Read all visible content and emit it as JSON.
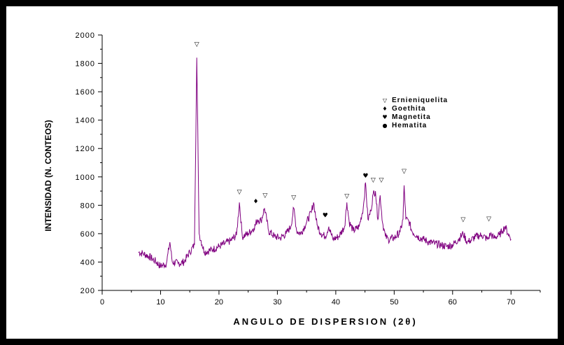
{
  "chart_data": {
    "type": "line",
    "title": "",
    "xlabel": "ANGULO DE DISPERSION (2θ)",
    "ylabel": "INTENSIDAD (N. CONTEOS)",
    "xlim": [
      0,
      75
    ],
    "ylim": [
      200,
      2000
    ],
    "x_ticks": [
      0,
      10,
      20,
      30,
      40,
      50,
      60,
      70
    ],
    "y_ticks": [
      200,
      400,
      600,
      800,
      1000,
      1200,
      1400,
      1600,
      1800,
      2000
    ],
    "grid": false,
    "line_color": "#800080",
    "series": [
      {
        "x": [
          6.2,
          7,
          8,
          9,
          10,
          11,
          11.6,
          12,
          13,
          14,
          15,
          15.8,
          16.2,
          16.6,
          17.5,
          19,
          20,
          21,
          22,
          23,
          23.5,
          24,
          25,
          26,
          26.6,
          27.2,
          27.8,
          28.5,
          29.5,
          30.5,
          31.5,
          32.3,
          32.8,
          33.3,
          34,
          35,
          35.8,
          36.2,
          36.8,
          37.5,
          38.2,
          38.8,
          39.5,
          40.5,
          41.5,
          41.9,
          42.3,
          43,
          44,
          44.7,
          45.1,
          45.5,
          46,
          46.4,
          46.8,
          47.2,
          47.6,
          48,
          48.5,
          49,
          50,
          51,
          51.5,
          51.7,
          52,
          52.5,
          53,
          54,
          55,
          56,
          57,
          58,
          59,
          60,
          61,
          61.8,
          62.5,
          63,
          64,
          65,
          66,
          66.5,
          67,
          68,
          68.5,
          69,
          69.5,
          70
        ],
        "y": [
          470,
          460,
          440,
          410,
          370,
          390,
          540,
          400,
          390,
          400,
          470,
          520,
          1840,
          600,
          470,
          490,
          510,
          530,
          550,
          590,
          820,
          580,
          600,
          640,
          700,
          690,
          780,
          620,
          580,
          570,
          600,
          650,
          780,
          620,
          600,
          680,
          750,
          820,
          660,
          600,
          580,
          650,
          560,
          580,
          650,
          820,
          680,
          620,
          650,
          780,
          960,
          700,
          760,
          880,
          900,
          700,
          870,
          680,
          580,
          560,
          570,
          610,
          700,
          940,
          700,
          690,
          620,
          580,
          560,
          540,
          530,
          520,
          510,
          520,
          560,
          600,
          540,
          550,
          580,
          590,
          560,
          600,
          570,
          590,
          620,
          650,
          600,
          560
        ]
      }
    ],
    "markers": [
      {
        "x": 16.2,
        "y": 1920,
        "symbol": "▽"
      },
      {
        "x": 23.5,
        "y": 880,
        "symbol": "▽"
      },
      {
        "x": 26.3,
        "y": 815,
        "symbol": "♦"
      },
      {
        "x": 27.9,
        "y": 855,
        "symbol": "▽"
      },
      {
        "x": 32.8,
        "y": 840,
        "symbol": "▽"
      },
      {
        "x": 38.2,
        "y": 715,
        "symbol": "♥"
      },
      {
        "x": 41.9,
        "y": 850,
        "symbol": "▽"
      },
      {
        "x": 45.1,
        "y": 995,
        "symbol": "♥"
      },
      {
        "x": 46.4,
        "y": 965,
        "symbol": "▽"
      },
      {
        "x": 47.8,
        "y": 965,
        "symbol": "▽"
      },
      {
        "x": 51.7,
        "y": 1025,
        "symbol": "▽"
      },
      {
        "x": 61.8,
        "y": 685,
        "symbol": "▽"
      },
      {
        "x": 66.2,
        "y": 690,
        "symbol": "▽"
      }
    ],
    "legend": {
      "placement": "top-right",
      "entries": [
        {
          "symbol": "▽",
          "label": "Ernieniquelita"
        },
        {
          "symbol": "♦",
          "label": "Goethita"
        },
        {
          "symbol": "♥",
          "label": "Magnetita"
        },
        {
          "symbol": "●",
          "label": "Hematita"
        }
      ]
    }
  }
}
